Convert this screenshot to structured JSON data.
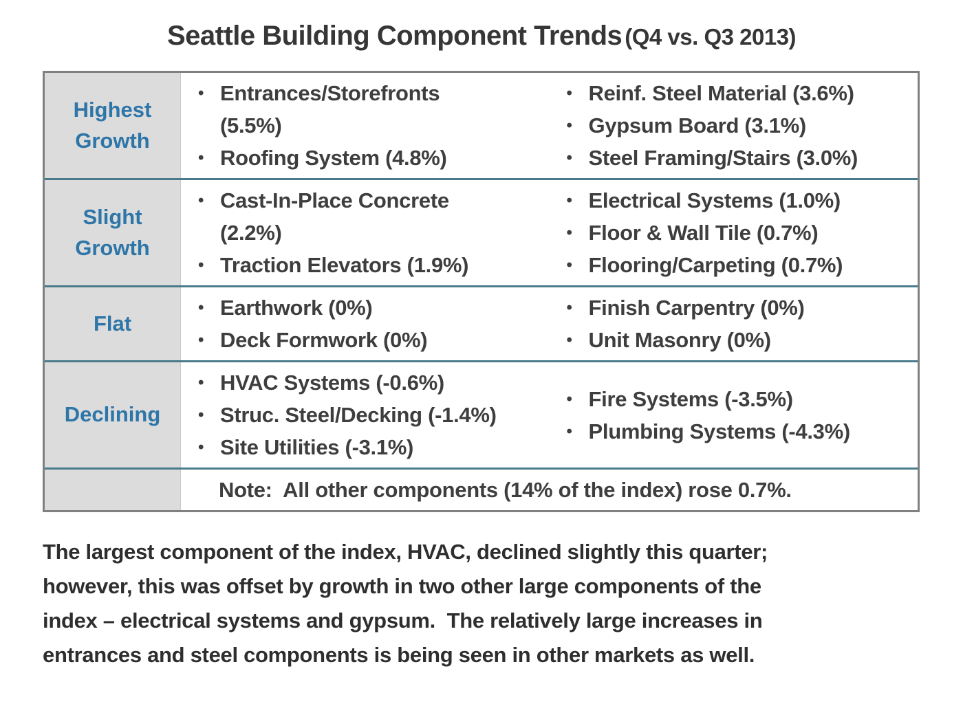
{
  "title": {
    "main": "Seattle Building Component Trends",
    "sub": "(Q4 vs. Q3 2013)"
  },
  "table": {
    "rows": [
      {
        "label": "Highest Growth",
        "col1": [
          "Entrances/Storefronts\n(5.5%)",
          "Roofing System (4.8%)"
        ],
        "col2": [
          "Reinf. Steel Material (3.6%)",
          "Gypsum Board (3.1%)",
          "Steel Framing/Stairs (3.0%)"
        ]
      },
      {
        "label": "Slight Growth",
        "col1": [
          "Cast-In-Place Concrete\n(2.2%)",
          "Traction Elevators (1.9%)"
        ],
        "col2": [
          "Electrical Systems (1.0%)",
          "Floor & Wall Tile (0.7%)",
          "Flooring/Carpeting (0.7%)"
        ]
      },
      {
        "label": "Flat",
        "col1": [
          "Earthwork (0%)",
          "Deck Formwork (0%)"
        ],
        "col2": [
          "Finish Carpentry (0%)",
          "Unit Masonry (0%)"
        ]
      },
      {
        "label": "Declining",
        "col1": [
          "HVAC Systems (-0.6%)",
          "Struc. Steel/Decking (-1.4%)",
          "Site Utilities (-3.1%)"
        ],
        "col2": [
          "Fire Systems (-3.5%)",
          "Plumbing Systems (-4.3%)"
        ]
      }
    ],
    "note": "Note:  All other components (14% of the index) rose 0.7%."
  },
  "commentary": "The largest component of the index, HVAC, declined slightly this quarter;\nhowever, this was offset by growth in two other large components of the\nindex – electrical systems and gypsum.  The relatively large increases in\nentrances and steel components is being seen in other markets as well.",
  "colors": {
    "label_blue": "#2E75A8",
    "label_cell_bg": "#DCDCDC",
    "row_separator_teal": "#4A7B8A",
    "outer_border_gray": "#808080",
    "body_text": "#3E3E3E"
  }
}
